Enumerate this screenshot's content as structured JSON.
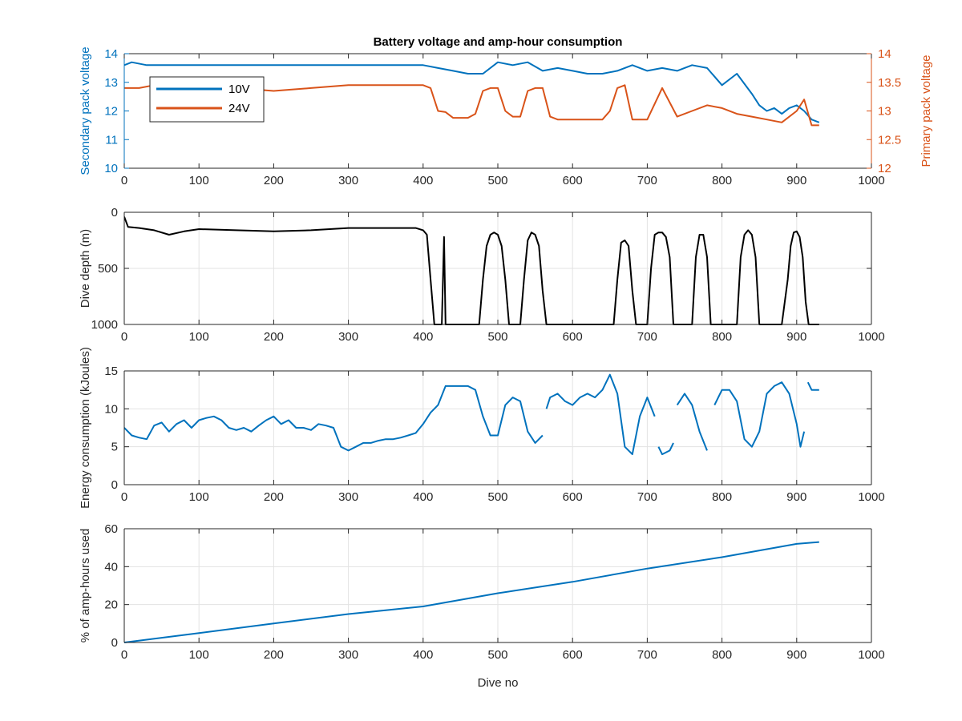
{
  "figure": {
    "title": "Battery voltage and amp-hour consumption",
    "colors": {
      "blue": "#0072BD",
      "orange": "#D95319",
      "black": "#000000",
      "grid": "#E3E3E3",
      "axis": "#262626"
    }
  },
  "chart_data": [
    {
      "type": "line",
      "title": "Battery voltage and amp-hour consumption",
      "xlabel": "",
      "ylabel": "Secondary pack voltage",
      "ylabel_right": "Primary pack voltage",
      "xlim": [
        0,
        1000
      ],
      "ylim": [
        10,
        14
      ],
      "ylim_right": [
        12,
        14
      ],
      "xticks": [
        0,
        100,
        200,
        300,
        400,
        500,
        600,
        700,
        800,
        900,
        1000
      ],
      "yticks": [
        10,
        11,
        12,
        13,
        14
      ],
      "yticks_right": [
        12,
        12.5,
        13,
        13.5,
        14
      ],
      "grid": false,
      "legend": "top-left",
      "series": [
        {
          "name": "10V",
          "axis": "left",
          "color": "#0072BD",
          "x": [
            0,
            10,
            30,
            60,
            100,
            150,
            200,
            250,
            300,
            350,
            400,
            420,
            440,
            460,
            480,
            500,
            520,
            540,
            560,
            580,
            600,
            620,
            640,
            660,
            680,
            700,
            720,
            740,
            760,
            780,
            800,
            820,
            840,
            850,
            860,
            870,
            880,
            890,
            900,
            910,
            920,
            930
          ],
          "values": [
            13.6,
            13.7,
            13.6,
            13.6,
            13.6,
            13.6,
            13.6,
            13.6,
            13.6,
            13.6,
            13.6,
            13.5,
            13.4,
            13.3,
            13.3,
            13.7,
            13.6,
            13.7,
            13.4,
            13.5,
            13.4,
            13.3,
            13.3,
            13.4,
            13.6,
            13.4,
            13.5,
            13.4,
            13.6,
            13.5,
            12.9,
            13.3,
            12.6,
            12.2,
            12.0,
            12.1,
            11.9,
            12.1,
            12.2,
            12.0,
            11.7,
            11.6
          ]
        },
        {
          "name": "24V",
          "axis": "right",
          "color": "#D95319",
          "x": [
            0,
            20,
            40,
            60,
            100,
            150,
            200,
            250,
            300,
            350,
            400,
            410,
            420,
            430,
            440,
            460,
            470,
            480,
            490,
            500,
            510,
            520,
            530,
            540,
            550,
            560,
            570,
            580,
            590,
            600,
            620,
            640,
            650,
            660,
            670,
            680,
            690,
            700,
            720,
            740,
            760,
            780,
            800,
            820,
            840,
            860,
            880,
            900,
            910,
            920,
            930
          ],
          "values": [
            13.4,
            13.4,
            13.45,
            13.4,
            13.4,
            13.4,
            13.35,
            13.4,
            13.45,
            13.45,
            13.45,
            13.4,
            13.0,
            12.98,
            12.88,
            12.88,
            12.95,
            13.35,
            13.4,
            13.4,
            13.0,
            12.9,
            12.9,
            13.35,
            13.4,
            13.4,
            12.9,
            12.85,
            12.85,
            12.85,
            12.85,
            12.85,
            13.0,
            13.4,
            13.45,
            12.85,
            12.85,
            12.85,
            13.4,
            12.9,
            13.0,
            13.1,
            13.05,
            12.95,
            12.9,
            12.85,
            12.8,
            13.0,
            13.2,
            12.75,
            12.75
          ]
        }
      ]
    },
    {
      "type": "line",
      "title": "",
      "xlabel": "",
      "ylabel": "Dive depth (m)",
      "xlim": [
        0,
        1000
      ],
      "ylim": [
        1000,
        0
      ],
      "y_reversed": true,
      "xticks": [
        0,
        100,
        200,
        300,
        400,
        500,
        600,
        700,
        800,
        900,
        1000
      ],
      "yticks": [
        0,
        500,
        1000
      ],
      "grid": true,
      "series": [
        {
          "color": "#000000",
          "x": [
            0,
            5,
            20,
            40,
            60,
            80,
            100,
            150,
            200,
            250,
            300,
            350,
            390,
            400,
            405,
            410,
            415,
            420,
            425,
            428,
            430,
            432,
            440,
            460,
            475,
            480,
            485,
            490,
            495,
            500,
            505,
            510,
            515,
            520,
            525,
            530,
            535,
            540,
            545,
            550,
            555,
            560,
            565,
            570,
            600,
            620,
            640,
            655,
            660,
            665,
            670,
            675,
            680,
            685,
            690,
            700,
            705,
            710,
            715,
            720,
            725,
            730,
            735,
            740,
            760,
            765,
            770,
            775,
            780,
            785,
            790,
            800,
            820,
            825,
            830,
            835,
            840,
            845,
            850,
            880,
            888,
            892,
            896,
            900,
            904,
            908,
            912,
            916,
            920,
            930
          ],
          "values": [
            40,
            130,
            140,
            160,
            200,
            170,
            150,
            160,
            170,
            160,
            140,
            140,
            140,
            160,
            200,
            600,
            1000,
            1000,
            1000,
            220,
            1000,
            1000,
            1000,
            1000,
            1000,
            600,
            300,
            200,
            180,
            200,
            300,
            600,
            1000,
            1000,
            1000,
            1000,
            600,
            250,
            180,
            200,
            300,
            700,
            1000,
            1000,
            1000,
            1000,
            1000,
            1000,
            600,
            270,
            250,
            300,
            700,
            1000,
            1000,
            1000,
            500,
            200,
            180,
            180,
            220,
            400,
            1000,
            1000,
            1000,
            400,
            200,
            200,
            400,
            1000,
            1000,
            1000,
            1000,
            400,
            200,
            160,
            200,
            400,
            1000,
            1000,
            600,
            300,
            180,
            170,
            220,
            400,
            800,
            1000,
            1000,
            1000
          ]
        }
      ]
    },
    {
      "type": "line",
      "title": "",
      "xlabel": "",
      "ylabel": "Energy consumption (kJoules)",
      "xlim": [
        0,
        1000
      ],
      "ylim": [
        0,
        15
      ],
      "xticks": [
        0,
        100,
        200,
        300,
        400,
        500,
        600,
        700,
        800,
        900,
        1000
      ],
      "yticks": [
        0,
        5,
        10,
        15
      ],
      "grid": true,
      "series": [
        {
          "color": "#0072BD",
          "x": [
            0,
            10,
            20,
            30,
            40,
            50,
            60,
            70,
            80,
            90,
            100,
            110,
            120,
            130,
            140,
            150,
            160,
            170,
            180,
            190,
            200,
            210,
            220,
            230,
            240,
            250,
            260,
            270,
            280,
            290,
            300,
            310,
            320,
            330,
            340,
            350,
            360,
            370,
            380,
            390,
            400,
            410,
            420,
            430,
            440,
            450,
            460,
            470,
            480,
            490,
            500,
            510,
            520,
            530,
            540,
            550,
            560,
            null,
            565,
            570,
            580,
            590,
            600,
            610,
            620,
            630,
            640,
            650,
            660,
            670,
            680,
            690,
            700,
            710,
            null,
            715,
            720,
            730,
            735,
            null,
            740,
            750,
            760,
            770,
            780,
            null,
            790,
            800,
            810,
            820,
            830,
            840,
            850,
            860,
            870,
            880,
            890,
            900,
            905,
            910,
            null,
            915,
            920,
            930
          ],
          "values": [
            7.5,
            6.5,
            6.2,
            6.0,
            7.8,
            8.2,
            7.0,
            8.0,
            8.5,
            7.5,
            8.5,
            8.8,
            9.0,
            8.5,
            7.5,
            7.2,
            7.5,
            7.0,
            7.8,
            8.5,
            9.0,
            8.0,
            8.5,
            7.5,
            7.5,
            7.2,
            8.0,
            7.8,
            7.5,
            5.0,
            4.5,
            5.0,
            5.5,
            5.5,
            5.8,
            6.0,
            6.0,
            6.2,
            6.5,
            6.8,
            8.0,
            9.5,
            10.5,
            13.0,
            13.0,
            13.0,
            13.0,
            12.5,
            9.0,
            6.5,
            6.5,
            10.5,
            11.5,
            11.0,
            7.0,
            5.5,
            6.5,
            null,
            10.0,
            11.5,
            12.0,
            11.0,
            10.5,
            11.5,
            12.0,
            11.5,
            12.5,
            14.5,
            12.0,
            5.0,
            4.0,
            9.0,
            11.5,
            9.0,
            null,
            5.0,
            4.0,
            4.5,
            5.5,
            null,
            10.5,
            12.0,
            10.5,
            7.0,
            4.5,
            null,
            10.5,
            12.5,
            12.5,
            11.0,
            6.0,
            5.0,
            7.0,
            12.0,
            13.0,
            13.5,
            12.0,
            8.0,
            5.0,
            7.0,
            null,
            13.5,
            12.5,
            12.5
          ]
        }
      ]
    },
    {
      "type": "line",
      "title": "",
      "xlabel": "Dive no",
      "ylabel": "% of amp-hours used",
      "xlim": [
        0,
        1000
      ],
      "ylim": [
        0,
        60
      ],
      "xticks": [
        0,
        100,
        200,
        300,
        400,
        500,
        600,
        700,
        800,
        900,
        1000
      ],
      "yticks": [
        0,
        20,
        40,
        60
      ],
      "grid": true,
      "series": [
        {
          "color": "#0072BD",
          "x": [
            0,
            100,
            200,
            300,
            400,
            500,
            600,
            700,
            800,
            900,
            930
          ],
          "values": [
            0,
            5,
            10,
            15,
            19,
            26,
            32,
            39,
            45,
            52,
            53
          ]
        }
      ]
    }
  ]
}
